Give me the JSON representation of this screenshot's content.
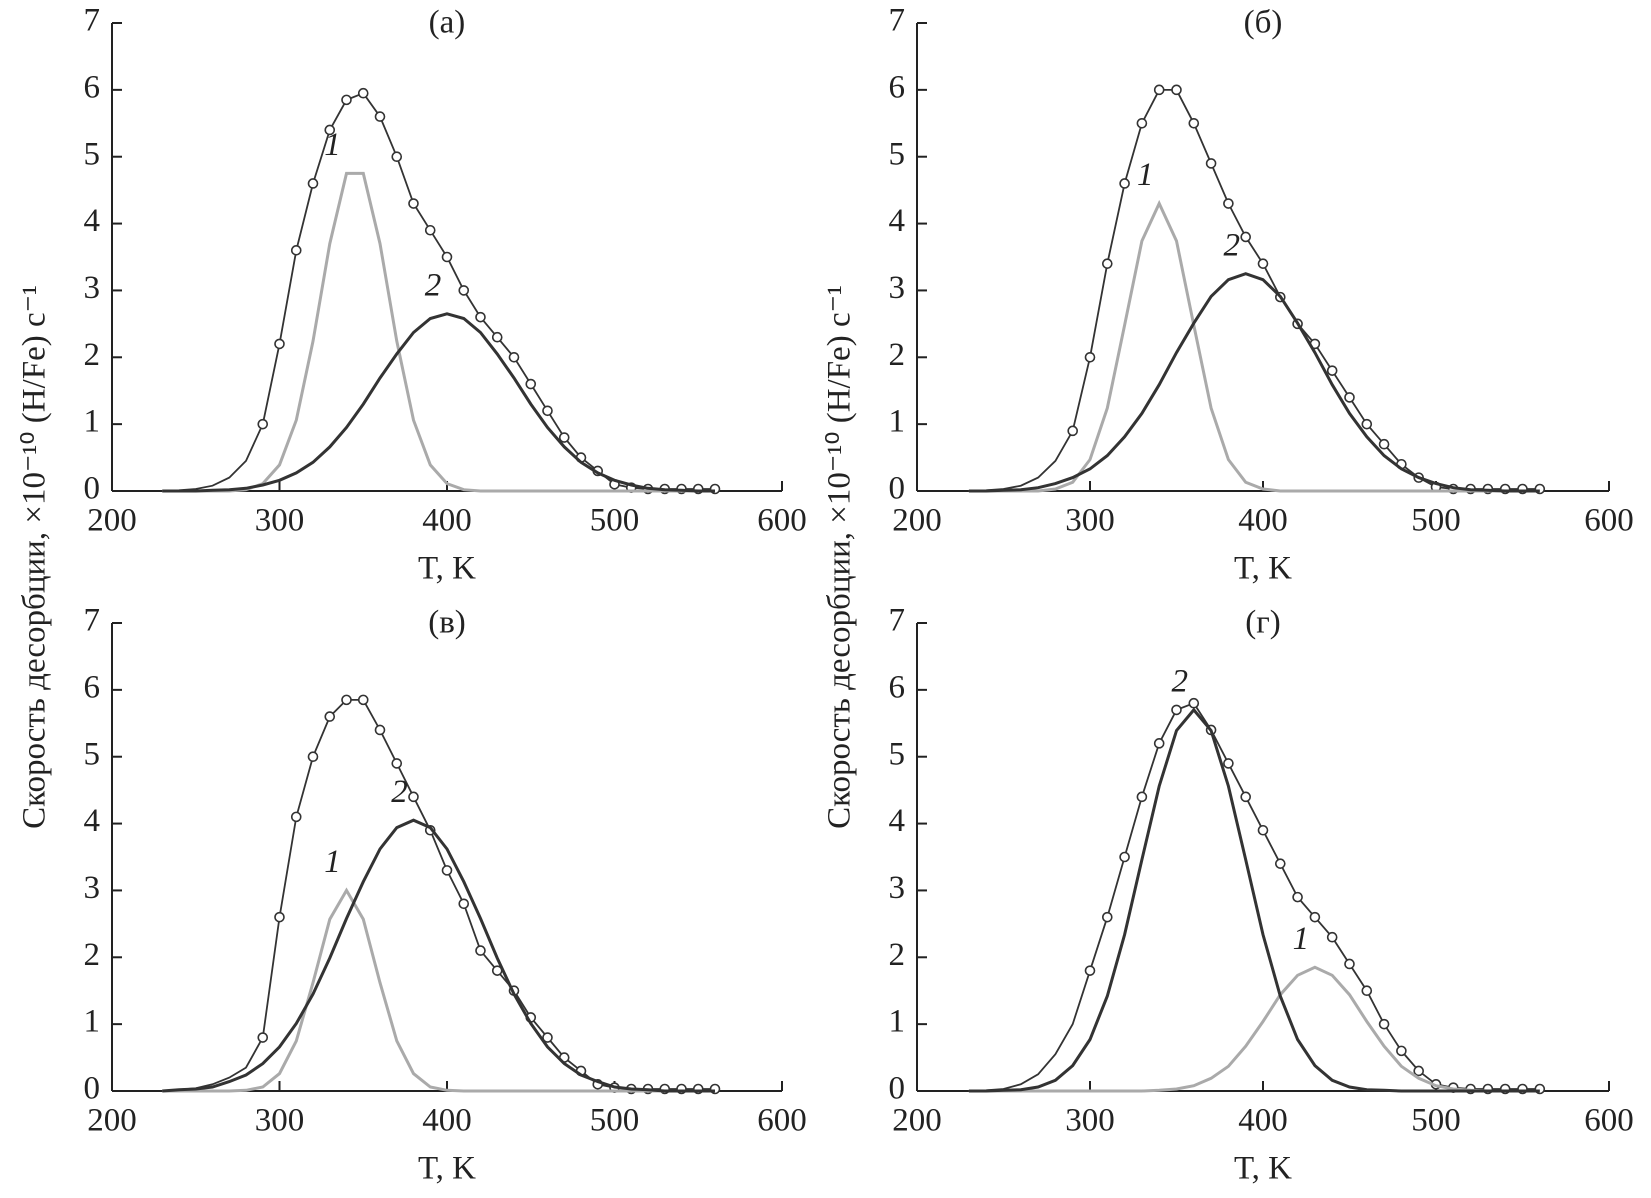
{
  "chart_data": [
    {
      "type": "line",
      "title": "(а)",
      "xlabel": "T, K",
      "ylabel": "Скорость десорбции, ×10⁻¹⁰ (H/Fe) с⁻¹",
      "x": [
        230,
        240,
        250,
        260,
        270,
        280,
        290,
        300,
        310,
        320,
        330,
        340,
        350,
        360,
        370,
        380,
        390,
        400,
        410,
        420,
        430,
        440,
        450,
        460,
        470,
        480,
        490,
        500,
        510,
        520,
        530,
        540,
        550,
        560
      ],
      "xlim": [
        200,
        600
      ],
      "xticks": [
        200,
        300,
        400,
        500,
        600
      ],
      "ylim": [
        0,
        7
      ],
      "yticks": [
        0,
        1,
        2,
        3,
        4,
        5,
        6,
        7
      ],
      "series": [
        {
          "color": "#333333",
          "values": [
            0,
            0.01,
            0.03,
            0.08,
            0.2,
            0.45,
            1.0,
            2.2,
            3.6,
            4.6,
            5.4,
            5.85,
            5.95,
            5.6,
            5.0,
            4.3,
            3.9,
            3.5,
            3.0,
            2.6,
            2.3,
            2.0,
            1.6,
            1.2,
            0.8,
            0.5,
            0.3,
            0.1,
            0.05,
            0.03,
            0.03,
            0.03,
            0.03,
            0.03
          ]
        },
        {
          "color": "#333333",
          "marker": "circle",
          "values": [
            null,
            null,
            null,
            null,
            null,
            null,
            1.0,
            2.2,
            3.6,
            4.6,
            5.4,
            5.85,
            5.95,
            5.6,
            5.0,
            4.3,
            3.9,
            3.5,
            3.0,
            2.6,
            2.3,
            2.0,
            1.6,
            1.2,
            0.8,
            0.5,
            0.3,
            0.1,
            0.05,
            0.03,
            0.03,
            0.03,
            0.03,
            0.03
          ]
        },
        {
          "name": "1",
          "color": "#aaaaaa",
          "values": [
            0,
            0,
            0,
            0,
            0,
            0.02,
            0.11,
            0.39,
            1.06,
            2.24,
            3.7,
            4.75,
            4.75,
            3.7,
            2.24,
            1.06,
            0.39,
            0.11,
            0.02,
            0,
            0,
            0,
            0,
            0,
            0,
            0,
            0,
            0,
            0,
            0,
            0,
            0,
            0,
            0
          ]
        },
        {
          "name": "2",
          "color": "#333333",
          "values": [
            0,
            0,
            0,
            0.01,
            0.02,
            0.04,
            0.09,
            0.16,
            0.27,
            0.43,
            0.66,
            0.95,
            1.3,
            1.69,
            2.05,
            2.37,
            2.58,
            2.65,
            2.58,
            2.37,
            2.05,
            1.69,
            1.3,
            0.95,
            0.66,
            0.43,
            0.27,
            0.16,
            0.09,
            0.04,
            0.02,
            0.01,
            0,
            0
          ]
        }
      ]
    },
    {
      "type": "line",
      "title": "(б)",
      "xlabel": "T, K",
      "ylabel": "Скорость десорбции, ×10⁻¹⁰ (H/Fe) с⁻¹",
      "x": [
        230,
        240,
        250,
        260,
        270,
        280,
        290,
        300,
        310,
        320,
        330,
        340,
        350,
        360,
        370,
        380,
        390,
        400,
        410,
        420,
        430,
        440,
        450,
        460,
        470,
        480,
        490,
        500,
        510,
        520,
        530,
        540,
        550,
        560
      ],
      "xlim": [
        200,
        600
      ],
      "xticks": [
        200,
        300,
        400,
        500,
        600
      ],
      "ylim": [
        0,
        7
      ],
      "yticks": [
        0,
        1,
        2,
        3,
        4,
        5,
        6,
        7
      ],
      "series": [
        {
          "color": "#333333",
          "values": [
            0,
            0.01,
            0.03,
            0.08,
            0.2,
            0.45,
            0.9,
            2.0,
            3.4,
            4.6,
            5.5,
            6.0,
            6.0,
            5.5,
            4.9,
            4.3,
            3.8,
            3.4,
            2.9,
            2.5,
            2.2,
            1.8,
            1.4,
            1.0,
            0.7,
            0.4,
            0.2,
            0.06,
            0.03,
            0.03,
            0.03,
            0.03,
            0.03,
            0.03
          ]
        },
        {
          "color": "#333333",
          "marker": "circle",
          "values": [
            null,
            null,
            null,
            null,
            null,
            null,
            0.9,
            2.0,
            3.4,
            4.6,
            5.5,
            6.0,
            6.0,
            5.5,
            4.9,
            4.3,
            3.8,
            3.4,
            2.9,
            2.5,
            2.2,
            1.8,
            1.4,
            1.0,
            0.7,
            0.4,
            0.2,
            0.06,
            0.03,
            0.03,
            0.03,
            0.03,
            0.03,
            0.03
          ]
        },
        {
          "name": "1",
          "color": "#aaaaaa",
          "values": [
            0,
            0,
            0,
            0,
            0,
            0.03,
            0.13,
            0.47,
            1.24,
            2.48,
            3.74,
            4.3,
            3.74,
            2.48,
            1.24,
            0.47,
            0.13,
            0.03,
            0,
            0,
            0,
            0,
            0,
            0,
            0,
            0,
            0,
            0,
            0,
            0,
            0,
            0,
            0,
            0
          ]
        },
        {
          "name": "2",
          "color": "#333333",
          "values": [
            0,
            0,
            0.01,
            0.02,
            0.05,
            0.11,
            0.2,
            0.33,
            0.53,
            0.81,
            1.16,
            1.59,
            2.07,
            2.51,
            2.91,
            3.16,
            3.25,
            3.16,
            2.91,
            2.51,
            2.07,
            1.59,
            1.16,
            0.81,
            0.53,
            0.33,
            0.2,
            0.11,
            0.05,
            0.02,
            0.01,
            0,
            0,
            0
          ]
        }
      ]
    },
    {
      "type": "line",
      "title": "(в)",
      "xlabel": "T, K",
      "x": [
        230,
        240,
        250,
        260,
        270,
        280,
        290,
        300,
        310,
        320,
        330,
        340,
        350,
        360,
        370,
        380,
        390,
        400,
        410,
        420,
        430,
        440,
        450,
        460,
        470,
        480,
        490,
        500,
        510,
        520,
        530,
        540,
        550,
        560
      ],
      "xlim": [
        200,
        600
      ],
      "xticks": [
        200,
        300,
        400,
        500,
        600
      ],
      "ylim": [
        0,
        7
      ],
      "yticks": [
        0,
        1,
        2,
        3,
        4,
        5,
        6,
        7
      ],
      "series": [
        {
          "color": "#333333",
          "values": [
            0,
            0.02,
            0.04,
            0.1,
            0.2,
            0.35,
            0.8,
            2.6,
            4.1,
            5.0,
            5.6,
            5.85,
            5.85,
            5.4,
            4.9,
            4.4,
            3.9,
            3.3,
            2.8,
            2.1,
            1.8,
            1.5,
            1.1,
            0.8,
            0.5,
            0.3,
            0.1,
            0.05,
            0.03,
            0.03,
            0.03,
            0.03,
            0.03,
            0.03
          ]
        },
        {
          "color": "#333333",
          "marker": "circle",
          "values": [
            null,
            null,
            null,
            null,
            null,
            null,
            0.8,
            2.6,
            4.1,
            5.0,
            5.6,
            5.85,
            5.85,
            5.4,
            4.9,
            4.4,
            3.9,
            3.3,
            2.8,
            2.1,
            1.8,
            1.5,
            1.1,
            0.8,
            0.5,
            0.3,
            0.1,
            0.05,
            0.03,
            0.03,
            0.03,
            0.03,
            0.03,
            0.03
          ]
        },
        {
          "name": "1",
          "color": "#aaaaaa",
          "values": [
            0,
            0,
            0,
            0,
            0,
            0.01,
            0.06,
            0.26,
            0.75,
            1.62,
            2.57,
            3.0,
            2.57,
            1.62,
            0.75,
            0.26,
            0.06,
            0.01,
            0,
            0,
            0,
            0,
            0,
            0,
            0,
            0,
            0,
            0,
            0,
            0,
            0,
            0,
            0,
            0
          ]
        },
        {
          "name": "2",
          "color": "#333333",
          "values": [
            0,
            0.02,
            0.03,
            0.06,
            0.14,
            0.24,
            0.41,
            0.66,
            1.01,
            1.45,
            1.99,
            2.58,
            3.13,
            3.62,
            3.94,
            4.05,
            3.94,
            3.62,
            3.13,
            2.58,
            1.99,
            1.45,
            1.01,
            0.66,
            0.41,
            0.24,
            0.14,
            0.06,
            0.03,
            0.02,
            0,
            0,
            0,
            0
          ]
        }
      ]
    },
    {
      "type": "line",
      "title": "(г)",
      "xlabel": "T, K",
      "x": [
        230,
        240,
        250,
        260,
        270,
        280,
        290,
        300,
        310,
        320,
        330,
        340,
        350,
        360,
        370,
        380,
        390,
        400,
        410,
        420,
        430,
        440,
        450,
        460,
        470,
        480,
        490,
        500,
        510,
        520,
        530,
        540,
        550,
        560
      ],
      "xlim": [
        200,
        600
      ],
      "xticks": [
        200,
        300,
        400,
        500,
        600
      ],
      "ylim": [
        0,
        7
      ],
      "yticks": [
        0,
        1,
        2,
        3,
        4,
        5,
        6,
        7
      ],
      "series": [
        {
          "color": "#333333",
          "values": [
            0,
            0.01,
            0.03,
            0.1,
            0.25,
            0.55,
            1.0,
            1.8,
            2.6,
            3.5,
            4.4,
            5.2,
            5.7,
            5.8,
            5.4,
            4.9,
            4.4,
            3.9,
            3.4,
            2.9,
            2.6,
            2.3,
            1.9,
            1.5,
            1.0,
            0.6,
            0.3,
            0.1,
            0.05,
            0.03,
            0.03,
            0.03,
            0.03,
            0.03
          ]
        },
        {
          "color": "#333333",
          "marker": "circle",
          "values": [
            null,
            null,
            null,
            null,
            null,
            null,
            null,
            1.8,
            2.6,
            3.5,
            4.4,
            5.2,
            5.7,
            5.8,
            5.4,
            4.9,
            4.4,
            3.9,
            3.4,
            2.9,
            2.6,
            2.3,
            1.9,
            1.5,
            1.0,
            0.6,
            0.3,
            0.1,
            0.05,
            0.03,
            0.03,
            0.03,
            0.03,
            0.03
          ]
        },
        {
          "name": "1",
          "color": "#aaaaaa",
          "values": [
            0,
            0,
            0,
            0,
            0,
            0,
            0,
            0,
            0,
            0,
            0,
            0.01,
            0.03,
            0.08,
            0.19,
            0.37,
            0.67,
            1.04,
            1.44,
            1.73,
            1.85,
            1.73,
            1.44,
            1.04,
            0.67,
            0.37,
            0.19,
            0.08,
            0.03,
            0.01,
            0,
            0,
            0,
            0
          ]
        },
        {
          "name": "2",
          "color": "#333333",
          "values": [
            0,
            0,
            0.01,
            0.02,
            0.06,
            0.16,
            0.38,
            0.77,
            1.42,
            2.34,
            3.46,
            4.56,
            5.39,
            5.7,
            5.39,
            4.56,
            3.46,
            2.34,
            1.42,
            0.77,
            0.38,
            0.16,
            0.06,
            0.02,
            0.01,
            0,
            0,
            0,
            0,
            0,
            0,
            0,
            0,
            0
          ]
        }
      ]
    }
  ]
}
